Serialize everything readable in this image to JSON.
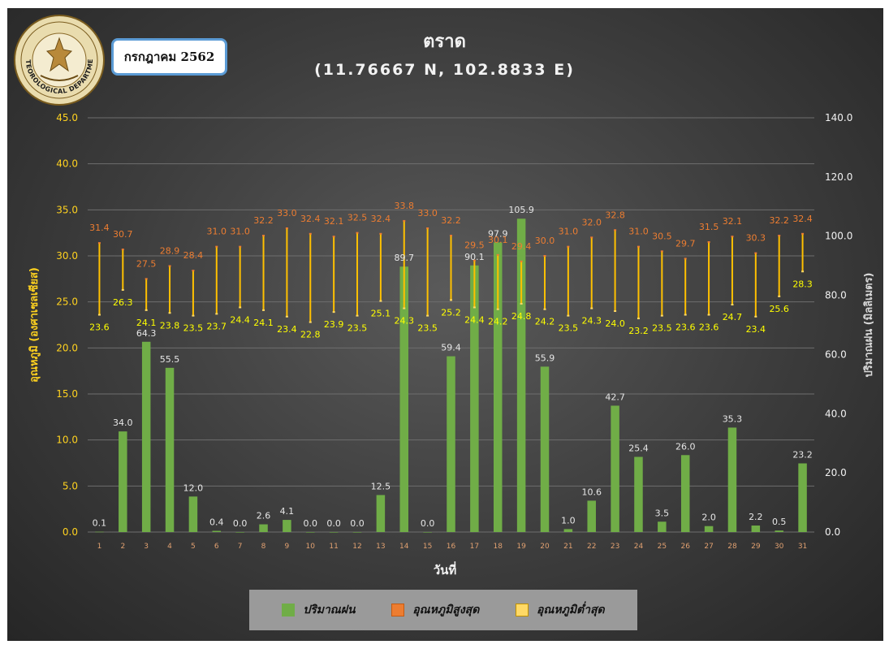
{
  "header": {
    "month_label": "กรกฎาคม 2562",
    "title": "ตราด",
    "subtitle": "(11.76667 N, 102.8833 E)",
    "logo_text": "METEOROLOGICAL DEPARTMENT"
  },
  "legend": [
    {
      "label": "ปริมาณฝน",
      "color": "#70ad47"
    },
    {
      "label": "อุณหภูมิสูงสุด",
      "color": "#ed7d31"
    },
    {
      "label": "อุณหภูมิต่ำสุด",
      "color": "#ffd966"
    }
  ],
  "chart_data": {
    "type": "bar",
    "xlabel": "วันที่",
    "ylabel_left": "อุณหภูมิ (องศาเซลเซียส)",
    "ylabel_right": "ปริมาณฝน (มิลลิเมตร)",
    "ylim_left": [
      0,
      45
    ],
    "ylim_right": [
      0,
      140
    ],
    "yticks_left": [
      "0.0",
      "5.0",
      "10.0",
      "15.0",
      "20.0",
      "25.0",
      "30.0",
      "35.0",
      "40.0",
      "45.0"
    ],
    "yticks_right": [
      "0.0",
      "20.0",
      "40.0",
      "60.0",
      "80.0",
      "100.0",
      "120.0",
      "140.0"
    ],
    "grid": true,
    "legend_position": "bottom",
    "categories": [
      "1",
      "2",
      "3",
      "4",
      "5",
      "6",
      "7",
      "8",
      "9",
      "10",
      "11",
      "12",
      "13",
      "14",
      "15",
      "16",
      "17",
      "18",
      "19",
      "20",
      "21",
      "22",
      "23",
      "24",
      "25",
      "26",
      "27",
      "28",
      "29",
      "30",
      "31"
    ],
    "series": [
      {
        "name": "ปริมาณฝน",
        "axis": "right",
        "color": "#70ad47",
        "values": [
          "0.1",
          "34.0",
          "64.3",
          "55.5",
          "12.0",
          "0.4",
          "0.0",
          "2.6",
          "4.1",
          "0.0",
          "0.0",
          "0.0",
          "12.5",
          "89.7",
          "0.0",
          "59.4",
          "90.1",
          "97.9",
          "105.9",
          "55.9",
          "1.0",
          "10.6",
          "42.7",
          "25.4",
          "3.5",
          "26.0",
          "2.0",
          "35.3",
          "2.2",
          "0.5",
          "23.2"
        ]
      },
      {
        "name": "อุณหภูมิสูงสุด",
        "axis": "left",
        "color": "#ed7d31",
        "values": [
          "31.4",
          "30.7",
          "27.5",
          "28.9",
          "28.4",
          "31.0",
          "31.0",
          "32.2",
          "33.0",
          "32.4",
          "32.1",
          "32.5",
          "32.4",
          "33.8",
          "33.0",
          "32.2",
          "29.5",
          "30.1",
          "29.4",
          "30.0",
          "31.0",
          "32.0",
          "32.8",
          "31.0",
          "30.5",
          "29.7",
          "31.5",
          "32.1",
          "30.3",
          "32.2",
          "32.4"
        ]
      },
      {
        "name": "อุณหภูมิต่ำสุด",
        "axis": "left",
        "color": "#ffd966",
        "values": [
          "23.6",
          "26.3",
          "24.1",
          "23.8",
          "23.5",
          "23.7",
          "24.4",
          "24.1",
          "23.4",
          "22.8",
          "23.9",
          "23.5",
          "25.1",
          "24.3",
          "23.5",
          "25.2",
          "24.4",
          "24.2",
          "24.8",
          "24.2",
          "23.5",
          "24.3",
          "24.0",
          "23.2",
          "23.5",
          "23.6",
          "23.6",
          "24.7",
          "23.4",
          "25.6",
          "28.3"
        ]
      }
    ]
  }
}
